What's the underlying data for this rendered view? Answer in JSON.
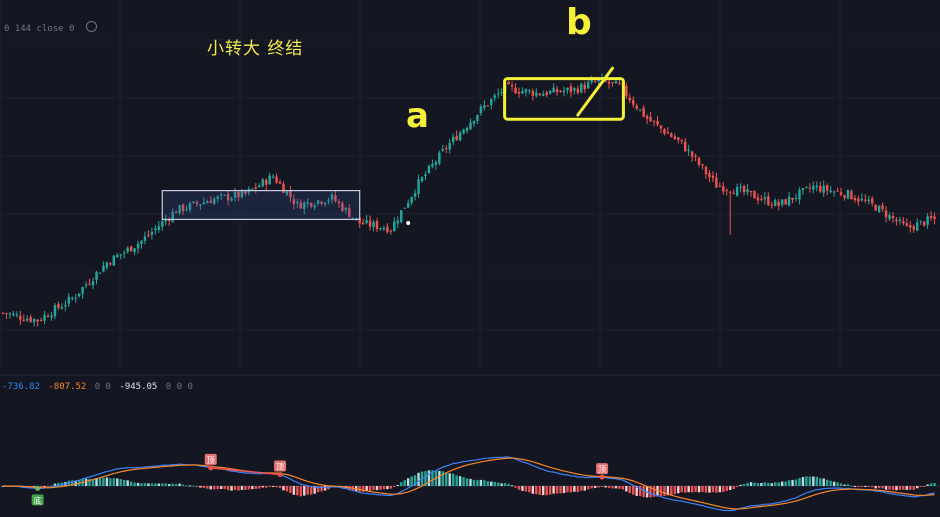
{
  "header": {
    "price_legend": "0 144 close 0",
    "eye_icon": "eye-off-icon"
  },
  "annotations": {
    "title": "小转大 终结",
    "mark_a": "a",
    "mark_b": "b"
  },
  "macd_legend": {
    "dif": "-736.82",
    "dea": "-807.52",
    "zeros_a": "0 0",
    "hist": "-945.05",
    "zeros_b": "0 0 0"
  },
  "badges": {
    "top": "顶",
    "bottom": "底"
  },
  "colors": {
    "background": "#141722",
    "up": "#26a69a",
    "down": "#ef5350",
    "dif_line": "#3b82f6",
    "dea_line": "#f5862b",
    "range_box": "#c7cbe0",
    "highlight": "#f4f03a",
    "divergence": "#ef5350"
  },
  "chart_data": {
    "type": "candlestick",
    "x_axis": "hidden",
    "y_axis": "hidden",
    "grid": true,
    "price_series": [
      {
        "bar": 0,
        "close": 100
      },
      {
        "bar": 10,
        "close": 96
      },
      {
        "bar": 20,
        "close": 108
      },
      {
        "bar": 30,
        "close": 128
      },
      {
        "bar": 40,
        "close": 140
      },
      {
        "bar": 50,
        "close": 157
      },
      {
        "bar": 60,
        "close": 163
      },
      {
        "bar": 70,
        "close": 166
      },
      {
        "bar": 78,
        "close": 176
      },
      {
        "bar": 85,
        "close": 160
      },
      {
        "bar": 95,
        "close": 164
      },
      {
        "bar": 103,
        "close": 150
      },
      {
        "bar": 112,
        "close": 147
      },
      {
        "bar": 120,
        "close": 172
      },
      {
        "bar": 128,
        "close": 192
      },
      {
        "bar": 138,
        "close": 213
      },
      {
        "bar": 145,
        "close": 225
      },
      {
        "bar": 155,
        "close": 222
      },
      {
        "bar": 165,
        "close": 224
      },
      {
        "bar": 172,
        "close": 229
      },
      {
        "bar": 178,
        "close": 226
      },
      {
        "bar": 186,
        "close": 208
      },
      {
        "bar": 196,
        "close": 194
      },
      {
        "bar": 206,
        "close": 171
      },
      {
        "bar": 214,
        "close": 167
      },
      {
        "bar": 224,
        "close": 160
      },
      {
        "bar": 234,
        "close": 170
      },
      {
        "bar": 244,
        "close": 166
      },
      {
        "bar": 252,
        "close": 159
      },
      {
        "bar": 261,
        "close": 147
      },
      {
        "bar": 268,
        "close": 152
      }
    ],
    "range_boxes": [
      {
        "from_bar": 46,
        "to_bar": 103,
        "low": 152,
        "high": 168,
        "style": "consolidation"
      },
      {
        "from_bar": 146,
        "to_bar": 178,
        "low": 211,
        "high": 228,
        "style": "hand-drawn highlight"
      }
    ],
    "macd": {
      "dif": -736.82,
      "dea": -807.52,
      "histogram": -945.05,
      "divergence_markers": [
        {
          "bar": 60,
          "label": "顶"
        },
        {
          "bar": 80,
          "label": "顶"
        },
        {
          "bar": 173,
          "label": "顶"
        },
        {
          "bar": 10,
          "label": "底"
        }
      ]
    }
  }
}
